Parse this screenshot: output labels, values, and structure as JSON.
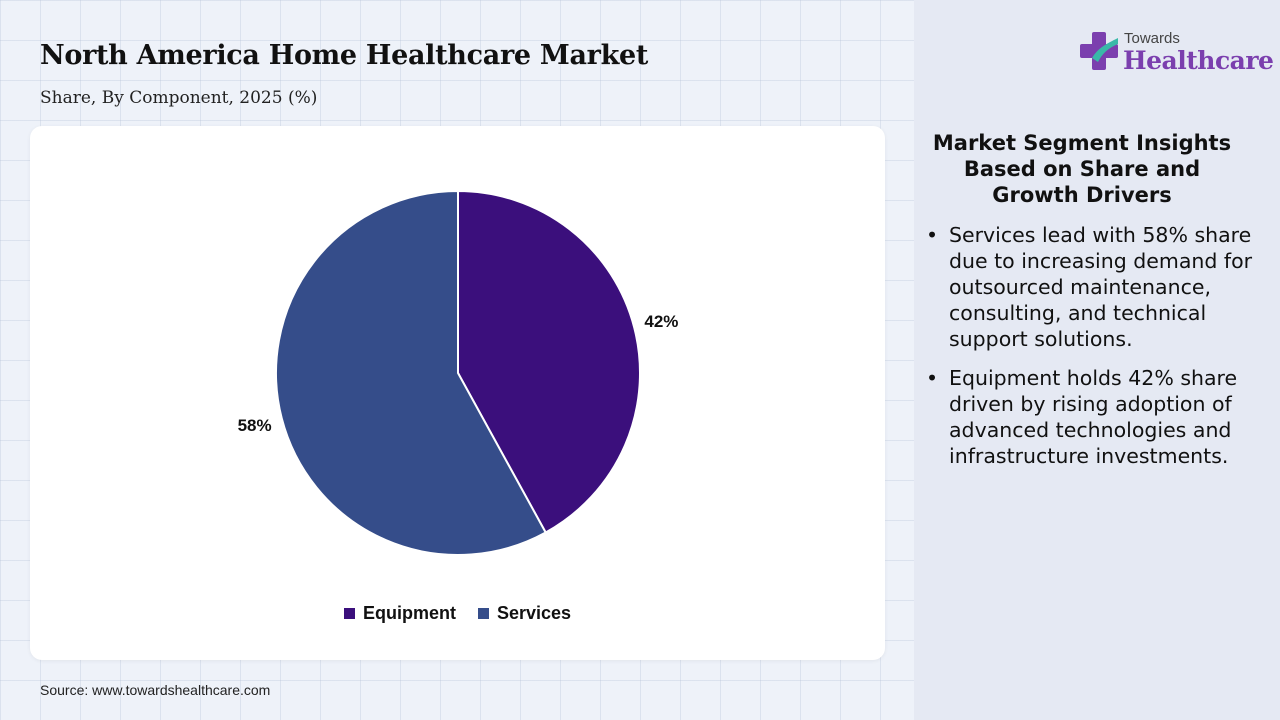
{
  "header": {
    "title": "North America Home Healthcare Market",
    "subtitle": "Share, By Component, 2025 (%)"
  },
  "logo": {
    "small_text": "Towards",
    "big_text": "Healthcare"
  },
  "chart_data": {
    "type": "pie",
    "categories": [
      "Equipment",
      "Services"
    ],
    "values": [
      42,
      58
    ],
    "labels": [
      "42%",
      "58%"
    ],
    "colors": [
      "#3b0f7c",
      "#354d8a"
    ],
    "legend_position": "bottom"
  },
  "insights": {
    "title": "Market Segment Insights Based on Share and Growth Drivers",
    "bullets": [
      "Services lead with 58% share due to increasing demand for outsourced maintenance, consulting, and technical support solutions.",
      "Equipment holds 42% share driven by rising adoption of advanced technologies and infrastructure investments."
    ]
  },
  "source": "Source: www.towardshealthcare.com"
}
